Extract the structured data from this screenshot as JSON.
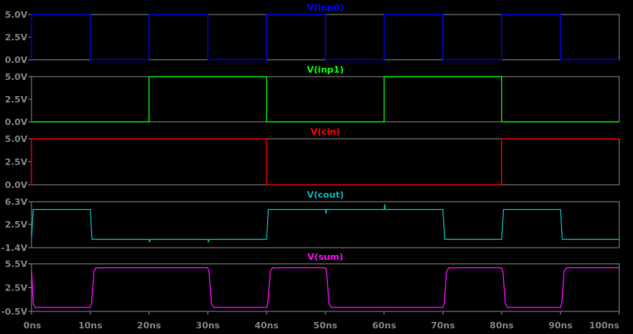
{
  "chart_data": {
    "type": "line",
    "x_unit": "ns",
    "x_range": [
      0,
      100
    ],
    "x_ticks": [
      "0ns",
      "10ns",
      "20ns",
      "30ns",
      "40ns",
      "50ns",
      "60ns",
      "70ns",
      "80ns",
      "90ns",
      "100ns"
    ],
    "background": "#000000",
    "grid": false,
    "panels": [
      {
        "title": "V(inp0)",
        "color": "#0000ff",
        "ylim": [
          0,
          5
        ],
        "y_ticks": [
          {
            "value": 5,
            "label": "5.0V"
          },
          {
            "value": 2.5,
            "label": "2.5V"
          },
          {
            "value": 0,
            "label": "0.0V"
          }
        ],
        "x": [
          0,
          0,
          10,
          10,
          20,
          20,
          30,
          30,
          40,
          40,
          50,
          50,
          60,
          60,
          70,
          70,
          80,
          80,
          90,
          90,
          100
        ],
        "y": [
          0,
          5,
          5,
          0,
          0,
          5,
          5,
          0,
          0,
          5,
          5,
          0,
          0,
          5,
          5,
          0,
          0,
          5,
          5,
          0,
          0
        ]
      },
      {
        "title": "V(inp1)",
        "color": "#00ff00",
        "ylim": [
          0,
          5
        ],
        "y_ticks": [
          {
            "value": 5,
            "label": "5.0V"
          },
          {
            "value": 2.5,
            "label": "2.5V"
          },
          {
            "value": 0,
            "label": "0.0V"
          }
        ],
        "x": [
          0,
          20,
          20,
          40,
          40,
          60,
          60,
          80,
          80,
          100
        ],
        "y": [
          0,
          0,
          5,
          5,
          0,
          0,
          5,
          5,
          0,
          0
        ]
      },
      {
        "title": "V(cin)",
        "color": "#ff0000",
        "ylim": [
          0,
          5
        ],
        "y_ticks": [
          {
            "value": 5,
            "label": "5.0V"
          },
          {
            "value": 2.5,
            "label": "2.5V"
          },
          {
            "value": 0,
            "label": "0.0V"
          }
        ],
        "x": [
          0,
          0,
          40,
          40,
          80,
          80,
          100
        ],
        "y": [
          0,
          5,
          5,
          0,
          0,
          5,
          5
        ]
      },
      {
        "title": "V(cout)",
        "color": "#00b4b4",
        "ylim": [
          -1.4,
          6.3
        ],
        "y_ticks": [
          {
            "value": 6.3,
            "label": "6.3V"
          },
          {
            "value": 2.5,
            "label": "2.5V"
          },
          {
            "value": -1.4,
            "label": "-1.4V"
          }
        ],
        "x": [
          0,
          0.3,
          0.5,
          10,
          10.3,
          20,
          20.1,
          20.2,
          30,
          30.1,
          30.2,
          40,
          40.3,
          50,
          50.1,
          50.2,
          60,
          60.1,
          60.2,
          70,
          70.3,
          80,
          80.3,
          90,
          90.3,
          100
        ],
        "y": [
          0,
          5,
          5,
          5,
          0,
          0,
          -0.5,
          0,
          0,
          -0.5,
          0,
          0,
          5,
          5,
          4.3,
          5,
          5,
          5.9,
          5,
          5,
          0,
          0,
          5,
          5,
          0,
          0
        ]
      },
      {
        "title": "V(sum)",
        "color": "#ff00ff",
        "ylim": [
          -0.5,
          5.5
        ],
        "y_ticks": [
          {
            "value": 5.5,
            "label": "5.5V"
          },
          {
            "value": 2.5,
            "label": "2.5V"
          },
          {
            "value": -0.5,
            "label": "-0.5V"
          }
        ],
        "x": [
          0,
          0.3,
          0.6,
          1,
          10,
          10.2,
          10.6,
          11,
          30,
          30.2,
          30.6,
          31,
          40,
          40.2,
          40.6,
          41,
          50,
          50.2,
          50.6,
          51,
          70,
          70.2,
          70.6,
          71,
          80,
          80.2,
          80.6,
          81,
          90,
          90.2,
          90.6,
          91,
          100
        ],
        "y": [
          5,
          0.5,
          0,
          0,
          0,
          0.5,
          4.5,
          5,
          5,
          4.5,
          0.5,
          0,
          0,
          0.5,
          4.5,
          5,
          5,
          4.5,
          0.5,
          0,
          0,
          0.5,
          4.5,
          5,
          5,
          4.5,
          0.5,
          0,
          0,
          0.5,
          4.5,
          5,
          5
        ]
      }
    ]
  }
}
